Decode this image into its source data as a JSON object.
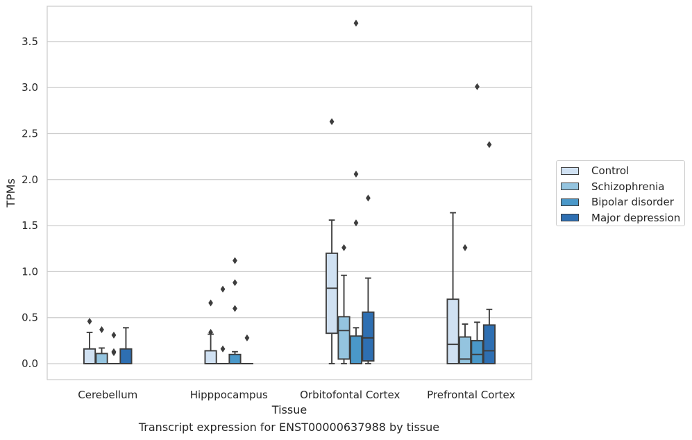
{
  "caption": "Transcript expression for ENST00000637988 by tissue",
  "chart_data": {
    "type": "box",
    "title": "",
    "xlabel": "Tissue",
    "ylabel": "TPMs",
    "ylim": [
      -0.18,
      3.9
    ],
    "yticks": [
      "0.0",
      "0.5",
      "1.0",
      "1.5",
      "2.0",
      "2.5",
      "3.0",
      "3.5"
    ],
    "grid": "horizontal",
    "legend_position": "right",
    "categories": [
      "Cerebellum",
      "Hipppocampus",
      "Orbitofontal Cortex",
      "Prefrontal Cortex"
    ],
    "series": [
      {
        "name": "Control",
        "color": "#d0e1f2",
        "boxes": [
          {
            "whislo": 0.0,
            "q1": 0.0,
            "med": 0.0,
            "q3": 0.16,
            "whishi": 0.34,
            "fliers": [
              0.46
            ]
          },
          {
            "whislo": 0.0,
            "q1": 0.0,
            "med": 0.0,
            "q3": 0.14,
            "whishi": 0.32,
            "fliers": [
              0.34,
              0.66
            ]
          },
          {
            "whislo": 0.0,
            "q1": 0.33,
            "med": 0.82,
            "q3": 1.2,
            "whishi": 1.56,
            "fliers": [
              2.63
            ]
          },
          {
            "whislo": 0.0,
            "q1": 0.0,
            "med": 0.21,
            "q3": 0.7,
            "whishi": 1.64,
            "fliers": []
          }
        ]
      },
      {
        "name": "Schizophrenia",
        "color": "#94c4df",
        "boxes": [
          {
            "whislo": 0.0,
            "q1": 0.0,
            "med": 0.0,
            "q3": 0.11,
            "whishi": 0.17,
            "fliers": [
              0.37
            ]
          },
          {
            "whislo": 0.0,
            "q1": 0.0,
            "med": 0.0,
            "q3": 0.0,
            "whishi": 0.0,
            "fliers": [
              0.16,
              0.81
            ]
          },
          {
            "whislo": 0.0,
            "q1": 0.05,
            "med": 0.36,
            "q3": 0.51,
            "whishi": 0.96,
            "fliers": [
              1.26
            ]
          },
          {
            "whislo": 0.0,
            "q1": 0.0,
            "med": 0.05,
            "q3": 0.29,
            "whishi": 0.43,
            "fliers": [
              1.26
            ]
          }
        ]
      },
      {
        "name": "Bipolar disorder",
        "color": "#4a98c9",
        "boxes": [
          {
            "whislo": 0.0,
            "q1": 0.0,
            "med": 0.0,
            "q3": 0.0,
            "whishi": 0.0,
            "fliers": [
              0.12,
              0.13,
              0.31
            ]
          },
          {
            "whislo": 0.0,
            "q1": 0.0,
            "med": 0.0,
            "q3": 0.1,
            "whishi": 0.13,
            "fliers": [
              0.6,
              0.88,
              1.12
            ]
          },
          {
            "whislo": 0.0,
            "q1": 0.0,
            "med": 0.0,
            "q3": 0.3,
            "whishi": 0.39,
            "fliers": [
              1.53,
              2.06,
              3.7
            ]
          },
          {
            "whislo": 0.0,
            "q1": 0.0,
            "med": 0.1,
            "q3": 0.25,
            "whishi": 0.45,
            "fliers": [
              3.01
            ]
          }
        ]
      },
      {
        "name": "Major depression",
        "color": "#2e6fb2",
        "boxes": [
          {
            "whislo": 0.0,
            "q1": 0.0,
            "med": 0.0,
            "q3": 0.16,
            "whishi": 0.39,
            "fliers": []
          },
          {
            "whislo": 0.0,
            "q1": 0.0,
            "med": 0.0,
            "q3": 0.0,
            "whishi": 0.0,
            "fliers": [
              0.28
            ]
          },
          {
            "whislo": 0.0,
            "q1": 0.03,
            "med": 0.28,
            "q3": 0.56,
            "whishi": 0.93,
            "fliers": [
              1.8
            ]
          },
          {
            "whislo": 0.0,
            "q1": 0.0,
            "med": 0.14,
            "q3": 0.42,
            "whishi": 0.59,
            "fliers": [
              2.38
            ]
          }
        ]
      }
    ]
  }
}
